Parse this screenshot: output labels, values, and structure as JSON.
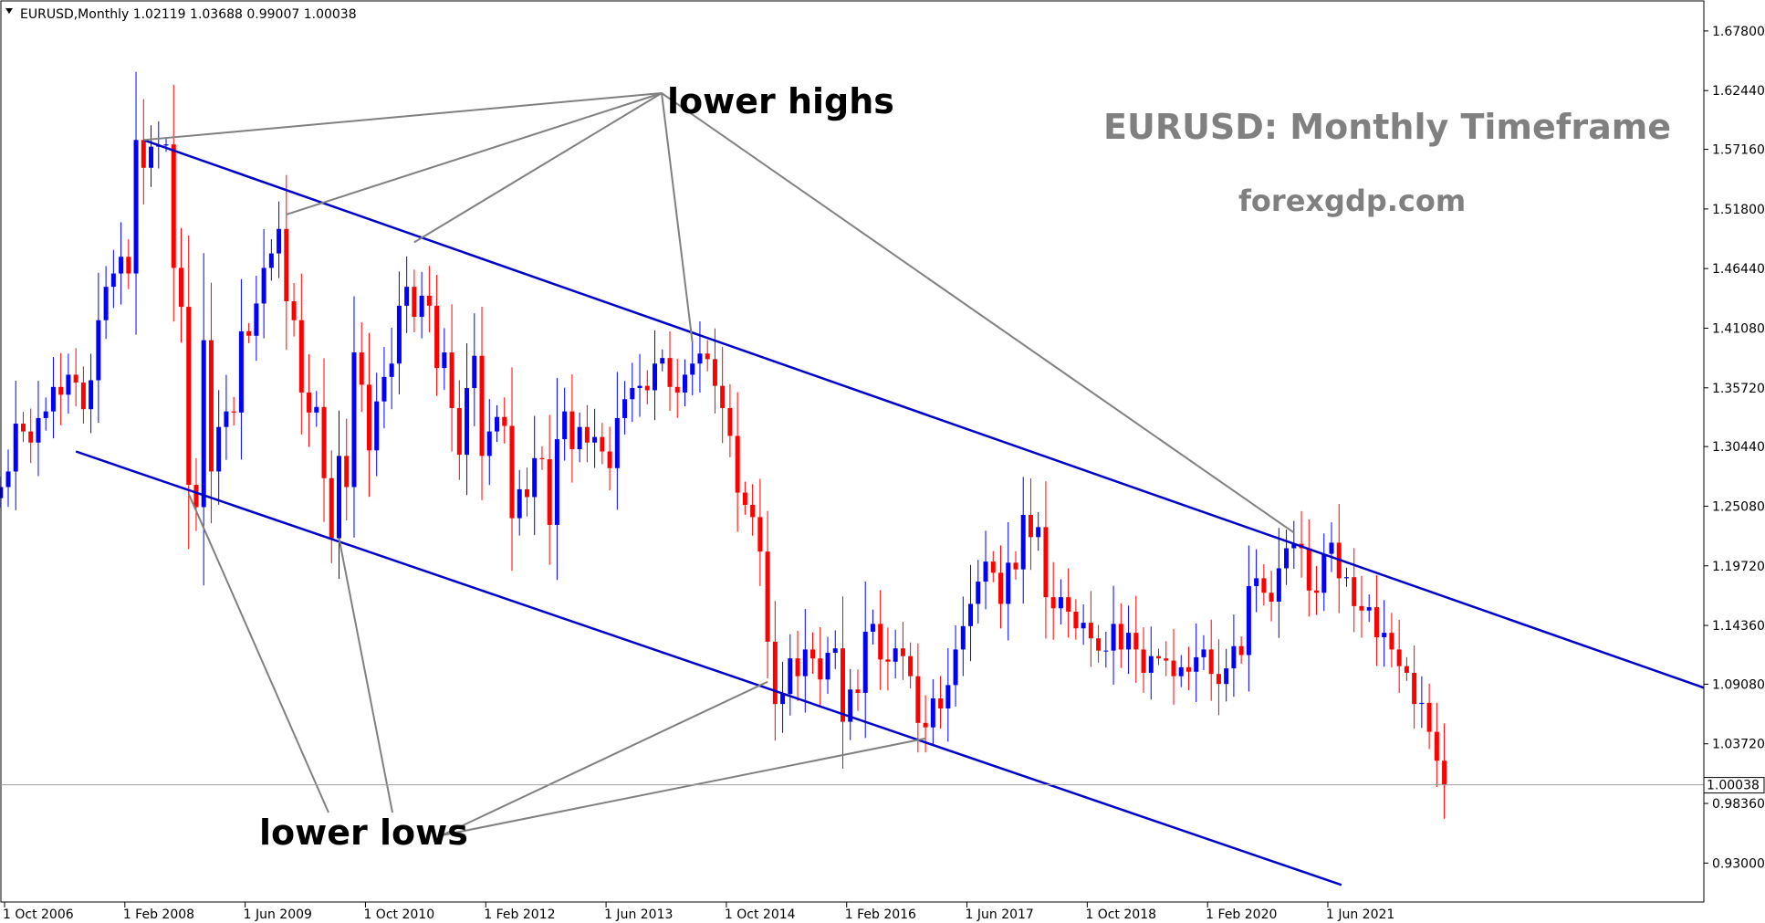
{
  "header": {
    "symbol_line": "EURUSD,Monthly  1.02119 1.03688 0.99007 1.00038"
  },
  "colors": {
    "bull": "#0000ff",
    "bear": "#ff0000",
    "channel": "#0000cc",
    "pointer": "#808080",
    "title": "#808080",
    "price_line": "#a0a0a0"
  },
  "chart_data": {
    "type": "candlestick",
    "title": "EURUSD: Monthly Timeframe",
    "subtitle": "forexgdp.com",
    "ylim": [
      0.895,
      1.705
    ],
    "y_ticks": [
      "1.67800",
      "1.62440",
      "1.57160",
      "1.51800",
      "1.46440",
      "1.41080",
      "1.35720",
      "1.30440",
      "1.25080",
      "1.19720",
      "1.14360",
      "1.09080",
      "1.03720",
      "0.98360",
      "0.93000"
    ],
    "x_ticks": [
      {
        "label": "1 Oct 2006",
        "at": "2006-10"
      },
      {
        "label": "1 Feb 2008",
        "at": "2008-02"
      },
      {
        "label": "1 Jun 2009",
        "at": "2009-06"
      },
      {
        "label": "1 Oct 2010",
        "at": "2010-10"
      },
      {
        "label": "1 Feb 2012",
        "at": "2012-02"
      },
      {
        "label": "1 Jun 2013",
        "at": "2013-06"
      },
      {
        "label": "1 Oct 2014",
        "at": "2014-10"
      },
      {
        "label": "1 Feb 2016",
        "at": "2016-02"
      },
      {
        "label": "1 Jun 2017",
        "at": "2017-06"
      },
      {
        "label": "1 Oct 2018",
        "at": "2018-10"
      },
      {
        "label": "1 Feb 2020",
        "at": "2020-02"
      },
      {
        "label": "1 Jun 2021",
        "at": "2021-06"
      }
    ],
    "current_price": "1.00038",
    "start_month": "2006-09",
    "closes": [
      1.268,
      1.282,
      1.325,
      1.318,
      1.308,
      1.33,
      1.336,
      1.358,
      1.351,
      1.369,
      1.362,
      1.338,
      1.364,
      1.418,
      1.448,
      1.46,
      1.475,
      1.46,
      1.58,
      1.555,
      1.574,
      1.575,
      1.576,
      1.465,
      1.43,
      1.27,
      1.25,
      1.4,
      1.282,
      1.322,
      1.336,
      1.335,
      1.408,
      1.404,
      1.433,
      1.465,
      1.478,
      1.5,
      1.435,
      1.418,
      1.353,
      1.335,
      1.34,
      1.276,
      1.222,
      1.296,
      1.268,
      1.389,
      1.36,
      1.301,
      1.345,
      1.367,
      1.379,
      1.431,
      1.448,
      1.421,
      1.44,
      1.431,
      1.375,
      1.389,
      1.339,
      1.297,
      1.357,
      1.386,
      1.296,
      1.318,
      1.331,
      1.323,
      1.24,
      1.266,
      1.259,
      1.294,
      1.293,
      1.234,
      1.311,
      1.336,
      1.302,
      1.322,
      1.308,
      1.313,
      1.3,
      1.285,
      1.33,
      1.347,
      1.357,
      1.359,
      1.355,
      1.379,
      1.384,
      1.358,
      1.353,
      1.369,
      1.379,
      1.388,
      1.383,
      1.359,
      1.339,
      1.314,
      1.263,
      1.252,
      1.241,
      1.21,
      1.129,
      1.073,
      1.082,
      1.114,
      1.098,
      1.122,
      1.114,
      1.095,
      1.119,
      1.123,
      1.057,
      1.086,
      1.083,
      1.138,
      1.145,
      1.113,
      1.111,
      1.123,
      1.116,
      1.098,
      1.056,
      1.052,
      1.078,
      1.069,
      1.09,
      1.122,
      1.143,
      1.163,
      1.183,
      1.201,
      1.191,
      1.163,
      1.2,
      1.194,
      1.243,
      1.223,
      1.232,
      1.169,
      1.159,
      1.169,
      1.156,
      1.141,
      1.146,
      1.132,
      1.121,
      1.121,
      1.145,
      1.122,
      1.137,
      1.122,
      1.101,
      1.116,
      1.114,
      1.112,
      1.098,
      1.106,
      1.102,
      1.115,
      1.122,
      1.1,
      1.091,
      1.105,
      1.125,
      1.117,
      1.179,
      1.186,
      1.173,
      1.165,
      1.195,
      1.213,
      1.217,
      1.213,
      1.175,
      1.173,
      1.208,
      1.218,
      1.186,
      1.187,
      1.161,
      1.157,
      1.16,
      1.133,
      1.137,
      1.122,
      1.107,
      1.101,
      1.073,
      1.074,
      1.048,
      1.022,
      1.0
    ]
  },
  "annotations": {
    "lower_highs": "lower highs",
    "lower_lows": "lower lows"
  }
}
